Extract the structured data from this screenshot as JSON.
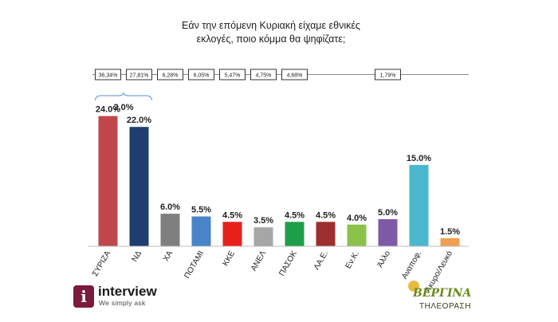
{
  "title_lines": [
    "Εάν την επόμενη Κυριακή είχαμε εθνικές",
    "εκλογές, ποιο κόμμα θα ψηφίζατε;"
  ],
  "chart_data": {
    "type": "bar",
    "categories": [
      "ΣΥΡΙΖΑ",
      "ΝΔ",
      "ΧΑ",
      "ΠΟΤΑΜΙ",
      "ΚΚΕ",
      "ΑΝΕΛ",
      "ΠΑΣΟΚ",
      "ΛΑ.Ε.",
      "Εν.Κ.",
      "Άλλο",
      "Αναποφ.",
      "Άκυρο/Λευκό"
    ],
    "values": [
      24.0,
      22.0,
      6.0,
      5.5,
      4.5,
      3.5,
      4.5,
      4.5,
      4.0,
      5.0,
      15.0,
      1.5
    ],
    "value_labels": [
      "24.0%",
      "22.0%",
      "6.0%",
      "5.5%",
      "4.5%",
      "3.5%",
      "4.5%",
      "4.5%",
      "4.0%",
      "5.0%",
      "15.0%",
      "1.5%"
    ],
    "colors": [
      "#c0474a",
      "#1f3d6e",
      "#7f7f7f",
      "#4a84c8",
      "#e8201a",
      "#a6a6a6",
      "#1e9e4a",
      "#9e2f30",
      "#8bc34a",
      "#7e5aa6",
      "#4bb8d0",
      "#f0a050"
    ],
    "ylim": [
      0,
      26
    ],
    "reference_results": [
      "36,34%",
      "27,81%",
      "6,28%",
      "6,05%",
      "5,47%",
      "4,75%",
      "4,68%",
      "",
      "",
      "1,79%",
      "",
      ""
    ],
    "difference_label": "2.0%",
    "difference_between": [
      "ΣΥΡΙΖΑ",
      "ΝΔ"
    ]
  },
  "logos": {
    "left": {
      "badge": "i",
      "name": "interview",
      "tagline": "We simply ask"
    },
    "right": {
      "name": "ΒΕΡΓΙΝΑ",
      "sub": "ΤΗΛΕΟΡΑΣΗ"
    }
  },
  "icons": {
    "left_logo": "interview-logo-icon",
    "right_logo": "vergina-sun-icon"
  }
}
